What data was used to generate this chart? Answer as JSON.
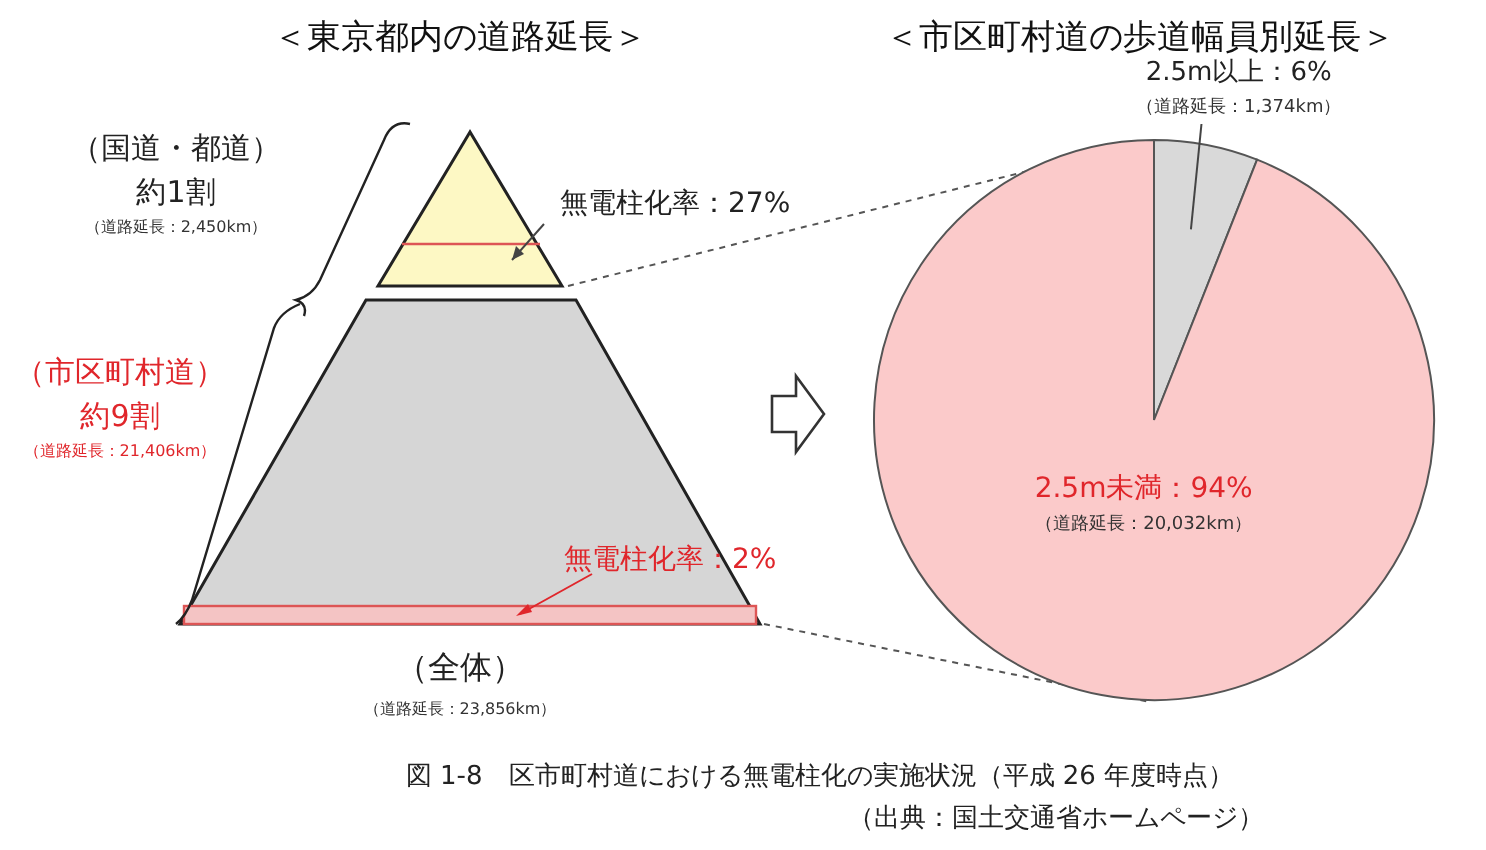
{
  "chart_data": [
    {
      "type": "other",
      "title": "＜東京都内の道路延長＞",
      "annotations": [
        "（国道・都道）",
        "約1割",
        "（道路延長：2,450km）",
        "（市区町村道）",
        "約9割",
        "（道路延長：21,406km）",
        "無電柱化率：27%",
        "無電柱化率：2%",
        "（全体）",
        "（道路延長：23,856km）"
      ]
    },
    {
      "type": "pie",
      "title": "＜市区町村道の歩道幅員別延長＞",
      "categories": [
        "2.5m以上：6%",
        "2.5m未満：94%"
      ],
      "values": [
        6,
        94
      ],
      "colors": [
        "#d9d9d9",
        "#fbcaca"
      ],
      "annotations": [
        "（道路延長：1,374km）",
        "（道路延長：20,032km）",
        "図 1-8　区市町村道における無電柱化の実施状況（平成 26 年度時点）",
        "（出典：国土交通省ホームページ）"
      ]
    }
  ]
}
